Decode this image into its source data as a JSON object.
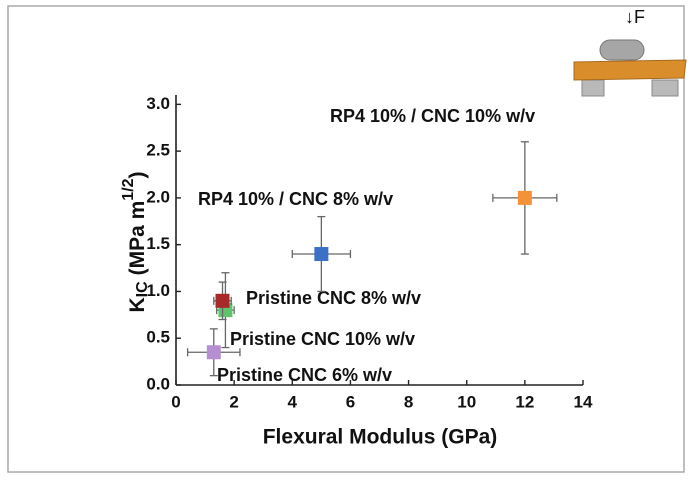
{
  "chart_data": {
    "type": "scatter",
    "x_label": "Flexural Modulus (GPa)",
    "y_label": {
      "symbol": "K",
      "sub": "IC",
      "unit": "(MPa m",
      "sup": "1/2",
      "close": ")"
    },
    "diagram_label": "↓F",
    "xlim": [
      0,
      14
    ],
    "xticks": [
      0,
      2,
      4,
      6,
      8,
      10,
      12,
      14
    ],
    "ylim": [
      0,
      3.1
    ],
    "yticks": [
      {
        "value": 0,
        "label": "0.0"
      },
      {
        "value": 0.5,
        "label": "0.5"
      },
      {
        "value": 1,
        "label": "1.0"
      },
      {
        "value": 1.5,
        "label": "1.5"
      },
      {
        "value": 2,
        "label": "2.0"
      },
      {
        "value": 2.5,
        "label": "2.5"
      },
      {
        "value": 3,
        "label": "3.0"
      }
    ],
    "series": [
      {
        "name": "Pristine CNC 6% w/v",
        "color": "#b68fd3",
        "x": [
          1.3
        ],
        "values": [
          0.35
        ],
        "xerr": [
          0.9
        ],
        "yerr": [
          0.25
        ]
      },
      {
        "name": "Pristine CNC 10% w/v",
        "color": "#5fc46d",
        "x": [
          1.7
        ],
        "values": [
          0.8
        ],
        "xerr": [
          0.3
        ],
        "yerr": [
          0.4
        ]
      },
      {
        "name": "Pristine CNC 8% w/v",
        "color": "#a8292a",
        "x": [
          1.6
        ],
        "values": [
          0.9
        ],
        "xerr": [
          0.3
        ],
        "yerr": [
          0.2
        ]
      },
      {
        "name": "RP4 10% / CNC 8% w/v",
        "color": "#3b70c6",
        "x": [
          5.0
        ],
        "values": [
          1.4
        ],
        "xerr": [
          1.0
        ],
        "yerr": [
          0.4
        ]
      },
      {
        "name": "RP4 10% / CNC 10% w/v",
        "color": "#f39237",
        "x": [
          12.0
        ],
        "values": [
          2.0
        ],
        "xerr": [
          1.1
        ],
        "yerr": [
          0.6
        ]
      }
    ]
  }
}
